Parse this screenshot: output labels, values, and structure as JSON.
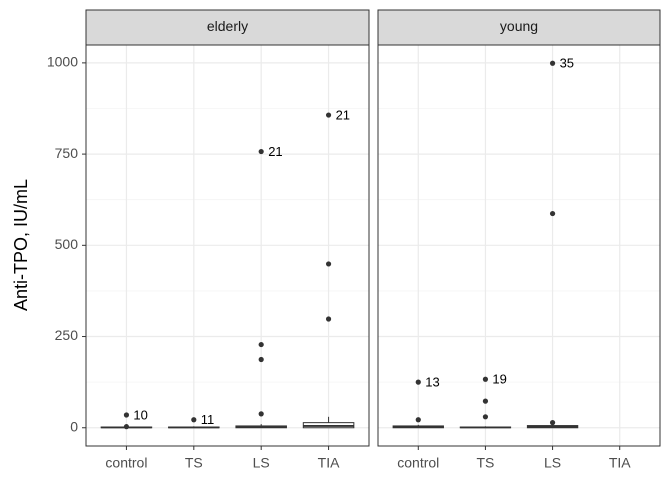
{
  "chart_data": [
    {
      "type": "box",
      "title": "elderly",
      "ylabel": "Anti-TPO, IU/mL",
      "categories": [
        "control",
        "TS",
        "LS",
        "TIA"
      ],
      "boxes": [
        {
          "whislo": 0,
          "q1": 0,
          "med": 1,
          "q3": 2,
          "whishi": 4,
          "outliers": [
            {
              "value": 35,
              "id": "10"
            },
            {
              "value": 3
            }
          ]
        },
        {
          "whislo": 0,
          "q1": 0,
          "med": 1,
          "q3": 2,
          "whishi": 4,
          "outliers": [
            {
              "value": 22,
              "id": "11"
            }
          ]
        },
        {
          "whislo": 0,
          "q1": 0,
          "med": 2,
          "q3": 5,
          "whishi": 10,
          "outliers": [
            {
              "value": 38
            },
            {
              "value": 187
            },
            {
              "value": 228
            },
            {
              "value": 757,
              "id": "21"
            }
          ]
        },
        {
          "whislo": 0,
          "q1": 0,
          "med": 5,
          "q3": 14,
          "whishi": 30,
          "outliers": [
            {
              "value": 298
            },
            {
              "value": 449
            },
            {
              "value": 857,
              "id": "21"
            }
          ]
        }
      ],
      "ylim": [
        -50,
        1049
      ],
      "yticks": [
        0,
        250,
        500,
        750,
        1000
      ],
      "grid": true
    },
    {
      "type": "box",
      "title": "young",
      "categories": [
        "control",
        "TS",
        "LS",
        "TIA"
      ],
      "boxes": [
        {
          "whislo": 0,
          "q1": 0,
          "med": 3,
          "q3": 5,
          "whishi": 8,
          "outliers": [
            {
              "value": 22
            },
            {
              "value": 125,
              "id": "13"
            }
          ]
        },
        {
          "whislo": 0,
          "q1": 0,
          "med": 1,
          "q3": 2,
          "whishi": 4,
          "outliers": [
            {
              "value": 30
            },
            {
              "value": 73
            },
            {
              "value": 133,
              "id": "19"
            }
          ]
        },
        {
          "whislo": 0,
          "q1": 0,
          "med": 3,
          "q3": 6,
          "whishi": 10,
          "outliers": [
            {
              "value": 14
            },
            {
              "value": 587
            },
            {
              "value": 999,
              "id": "35"
            }
          ]
        },
        null
      ],
      "ylim": [
        -50,
        1049
      ],
      "yticks": [
        0,
        250,
        500,
        750,
        1000
      ],
      "grid": true
    }
  ]
}
